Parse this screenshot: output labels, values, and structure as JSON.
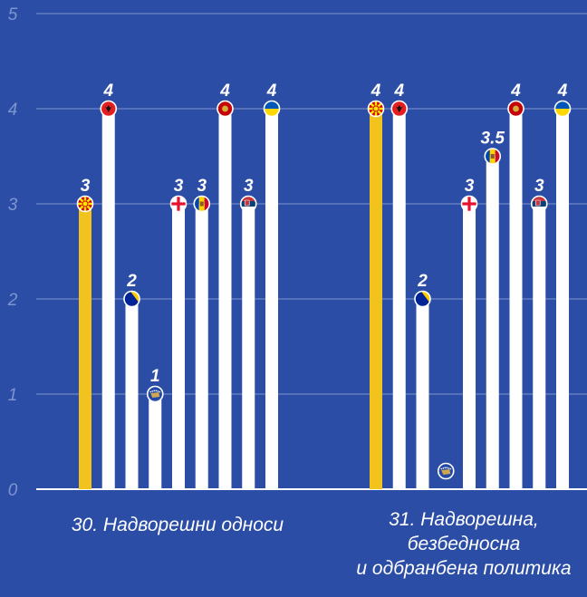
{
  "chart_data": {
    "type": "bar",
    "title": "",
    "xlabel": "",
    "ylabel": "",
    "ylim": [
      0,
      5
    ],
    "yticks": [
      "0",
      "1",
      "2",
      "3",
      "4",
      "5"
    ],
    "grid": true,
    "categories": [
      {
        "label_lines": [
          "30. Надворешни односи"
        ],
        "bars": [
          {
            "country": "North Macedonia",
            "value": 3,
            "label": "3",
            "highlight": true,
            "flag": "macedonia"
          },
          {
            "country": "Albania",
            "value": 4,
            "label": "4",
            "highlight": false,
            "flag": "albania"
          },
          {
            "country": "Bosnia and Herzegovina",
            "value": 2,
            "label": "2",
            "highlight": false,
            "flag": "bosnia"
          },
          {
            "country": "Kosovo",
            "value": 1,
            "label": "1",
            "highlight": false,
            "flag": "kosovo"
          },
          {
            "country": "Georgia",
            "value": 3,
            "label": "3",
            "highlight": false,
            "flag": "georgia"
          },
          {
            "country": "Moldova",
            "value": 3,
            "label": "3",
            "highlight": false,
            "flag": "moldova"
          },
          {
            "country": "Montenegro",
            "value": 4,
            "label": "4",
            "highlight": false,
            "flag": "montenegro"
          },
          {
            "country": "Serbia",
            "value": 3,
            "label": "3",
            "highlight": false,
            "flag": "serbia"
          },
          {
            "country": "Ukraine",
            "value": 4,
            "label": "4",
            "highlight": false,
            "flag": "ukraine"
          }
        ]
      },
      {
        "label_lines": [
          "31. Надворешна,",
          "безбедносна",
          "и одбранбена политика"
        ],
        "bars": [
          {
            "country": "North Macedonia",
            "value": 4,
            "label": "4",
            "highlight": true,
            "flag": "macedonia"
          },
          {
            "country": "Albania",
            "value": 4,
            "label": "4",
            "highlight": false,
            "flag": "albania"
          },
          {
            "country": "Bosnia and Herzegovina",
            "value": 2,
            "label": "2",
            "highlight": false,
            "flag": "bosnia"
          },
          {
            "country": "Kosovo",
            "value": 0,
            "label": "",
            "highlight": false,
            "flag": "kosovo"
          },
          {
            "country": "Georgia",
            "value": 3,
            "label": "3",
            "highlight": false,
            "flag": "georgia"
          },
          {
            "country": "Moldova",
            "value": 3.5,
            "label": "3.5",
            "highlight": false,
            "flag": "moldova"
          },
          {
            "country": "Montenegro",
            "value": 4,
            "label": "4",
            "highlight": false,
            "flag": "montenegro"
          },
          {
            "country": "Serbia",
            "value": 3,
            "label": "3",
            "highlight": false,
            "flag": "serbia"
          },
          {
            "country": "Ukraine",
            "value": 4,
            "label": "4",
            "highlight": false,
            "flag": "ukraine"
          }
        ]
      }
    ],
    "colors": {
      "background": "#2b4da6",
      "bar": "#ffffff",
      "highlight_bar": "#f2c31d",
      "grid": "#7e95cf",
      "baseline": "#ffffff",
      "tick_text": "#7e95cf",
      "label_text": "#ffffff"
    }
  }
}
